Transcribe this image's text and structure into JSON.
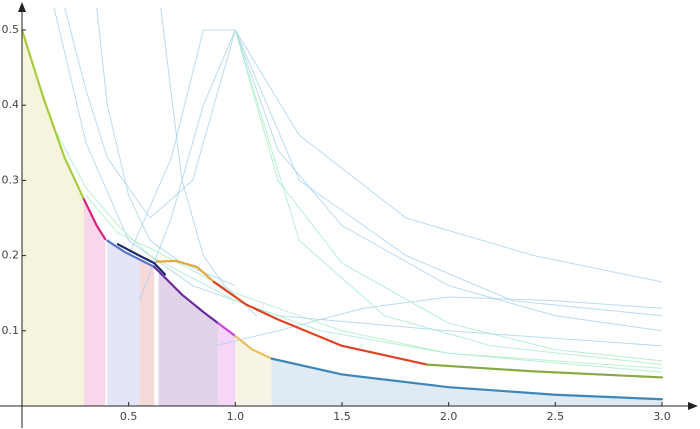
{
  "chart_data": {
    "type": "line",
    "xlim": [
      0,
      3.1
    ],
    "ylim": [
      0,
      0.53
    ],
    "xticks": [
      0.5,
      {
        "value": 1,
        "label": "1.0"
      },
      1.5,
      {
        "value": 2,
        "label": "2.0"
      },
      2.5,
      {
        "value": 3,
        "label": "3.0"
      }
    ],
    "yticks": [
      0.1,
      0.2,
      0.3,
      0.4,
      0.5
    ],
    "regions": [
      {
        "color": "#f4f2d6",
        "x": [
          0,
          0.1,
          0.2,
          0.29
        ],
        "values": [
          0.5,
          0.41,
          0.33,
          0.275
        ]
      },
      {
        "color": "#f9cfe6",
        "x": [
          0.29,
          0.35,
          0.39
        ],
        "values": [
          0.275,
          0.24,
          0.222
        ]
      },
      {
        "color": "#dfe1f8",
        "x": [
          0.4,
          0.48,
          0.55
        ],
        "values": [
          0.22,
          0.205,
          0.195
        ]
      },
      {
        "color": "#f4d2d2",
        "x": [
          0.55,
          0.62
        ],
        "values": [
          0.195,
          0.185
        ]
      },
      {
        "color": "#dccbe6",
        "x": [
          0.64,
          0.75,
          0.85,
          0.92
        ],
        "values": [
          0.18,
          0.148,
          0.125,
          0.11
        ]
      },
      {
        "color": "#f3cff7",
        "x": [
          0.92,
          1.0
        ],
        "values": [
          0.11,
          0.093
        ]
      },
      {
        "color": "#f6f2e0",
        "x": [
          1.0,
          1.08,
          1.17
        ],
        "values": [
          0.093,
          0.075,
          0.063
        ]
      },
      {
        "color": "#d9e6f0",
        "x": [
          1.17,
          1.5,
          2.0,
          2.5,
          3.0
        ],
        "values": [
          0.063,
          0.042,
          0.025,
          0.015,
          0.009
        ]
      }
    ],
    "faint_series": [
      {
        "color": "#a9d3ee",
        "x": [
          0.55,
          0.7,
          0.85,
          1.0,
          1.2,
          1.5,
          2.0,
          2.5,
          3.0
        ],
        "values": [
          0.14,
          0.25,
          0.4,
          0.5,
          0.34,
          0.24,
          0.16,
          0.12,
          0.1
        ]
      },
      {
        "color": "#a9d3ee",
        "x": [
          0.2,
          0.3,
          0.4,
          0.6,
          0.8,
          1.0,
          1.3,
          1.8,
          2.4,
          3.0
        ],
        "values": [
          0.53,
          0.42,
          0.33,
          0.25,
          0.3,
          0.5,
          0.36,
          0.25,
          0.2,
          0.165
        ]
      },
      {
        "color": "#a9d3ee",
        "x": [
          0.15,
          0.3,
          0.5,
          0.8,
          1.2,
          2.0,
          3.0
        ],
        "values": [
          0.53,
          0.35,
          0.22,
          0.16,
          0.12,
          0.1,
          0.08
        ]
      },
      {
        "color": "#a9d3ee",
        "x": [
          0.5,
          0.7,
          0.85,
          1.0,
          1.3,
          1.8,
          2.3,
          3.0
        ],
        "values": [
          0.2,
          0.33,
          0.5,
          0.5,
          0.3,
          0.2,
          0.14,
          0.12
        ]
      },
      {
        "color": "#a9d3ee",
        "x": [
          0.9,
          1.2,
          1.6,
          2.0,
          2.5,
          3.0
        ],
        "values": [
          0.08,
          0.1,
          0.13,
          0.145,
          0.14,
          0.13
        ]
      },
      {
        "color": "#a9d3ee",
        "x": [
          0.65,
          0.75,
          0.85,
          0.95,
          1.1
        ],
        "values": [
          0.53,
          0.3,
          0.2,
          0.16,
          0.12
        ]
      },
      {
        "color": "#a9d3ee",
        "x": [
          0.35,
          0.4,
          0.5,
          0.6,
          0.75,
          1.0
        ],
        "values": [
          0.53,
          0.4,
          0.28,
          0.22,
          0.19,
          0.16
        ]
      },
      {
        "color": "#a8ecc6",
        "x": [
          0.0,
          0.15,
          0.3,
          0.45,
          0.6,
          0.8,
          1.0,
          1.4,
          2.0,
          3.0
        ],
        "values": [
          0.5,
          0.37,
          0.29,
          0.24,
          0.2,
          0.17,
          0.14,
          0.1,
          0.07,
          0.05
        ]
      },
      {
        "color": "#a8ecc6",
        "x": [
          1.0,
          1.2,
          1.5,
          2.0,
          2.5,
          3.0
        ],
        "values": [
          0.5,
          0.3,
          0.19,
          0.11,
          0.075,
          0.06
        ]
      },
      {
        "color": "#a8ecc6",
        "x": [
          0.3,
          0.45,
          0.6,
          0.8,
          1.0,
          1.5,
          2.0,
          3.0
        ],
        "values": [
          0.28,
          0.23,
          0.21,
          0.18,
          0.15,
          0.1,
          0.07,
          0.045
        ]
      },
      {
        "color": "#a8ecc6",
        "x": [
          1.0,
          1.3,
          1.7,
          2.2,
          3.0
        ],
        "values": [
          0.5,
          0.22,
          0.12,
          0.08,
          0.055
        ]
      }
    ],
    "series": [
      {
        "color": "#a8cc3c",
        "x": [
          0,
          0.1,
          0.2,
          0.29
        ],
        "values": [
          0.5,
          0.41,
          0.33,
          0.275
        ]
      },
      {
        "color": "#d5247f",
        "x": [
          0.29,
          0.35,
          0.39
        ],
        "values": [
          0.275,
          0.24,
          0.222
        ]
      },
      {
        "color": "#5577cc",
        "x": [
          0.4,
          0.48,
          0.55,
          0.62
        ],
        "values": [
          0.22,
          0.205,
          0.195,
          0.185
        ]
      },
      {
        "color": "#1e2a6e",
        "x": [
          0.45,
          0.55,
          0.62,
          0.67
        ],
        "values": [
          0.215,
          0.2,
          0.19,
          0.175
        ]
      },
      {
        "color": "#6a2aa0",
        "x": [
          0.62,
          0.75,
          0.85,
          0.92
        ],
        "values": [
          0.185,
          0.148,
          0.125,
          0.11
        ]
      },
      {
        "color": "#cc44dd",
        "x": [
          0.92,
          1.0
        ],
        "values": [
          0.11,
          0.093
        ]
      },
      {
        "color": "#e6a843",
        "x": [
          0.63,
          0.72,
          0.82,
          0.9
        ],
        "values": [
          0.192,
          0.193,
          0.185,
          0.165
        ]
      },
      {
        "color": "#dd4422",
        "x": [
          0.9,
          1.05,
          1.2,
          1.5,
          1.9
        ],
        "values": [
          0.165,
          0.135,
          0.115,
          0.08,
          0.055
        ]
      },
      {
        "color": "#88aa44",
        "x": [
          1.9,
          2.4,
          3.0
        ],
        "values": [
          0.055,
          0.046,
          0.038
        ]
      },
      {
        "color": "#e6c060",
        "x": [
          1.0,
          1.08,
          1.17
        ],
        "values": [
          0.093,
          0.075,
          0.063
        ]
      },
      {
        "color": "#3f86b8",
        "x": [
          1.17,
          1.5,
          2.0,
          2.5,
          3.0
        ],
        "values": [
          0.063,
          0.042,
          0.025,
          0.015,
          0.009
        ]
      }
    ]
  }
}
